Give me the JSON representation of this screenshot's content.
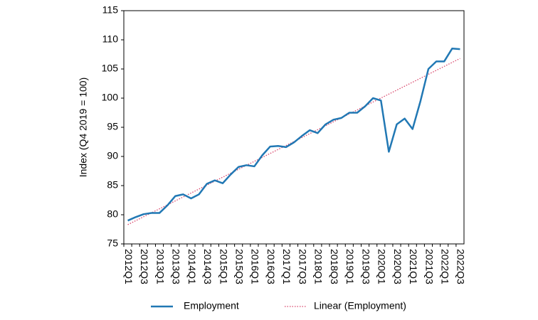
{
  "chart_data": {
    "type": "line",
    "y_label": "Index (Q4 2019 = 100)",
    "categories": [
      "2012Q1",
      null,
      "2012Q3",
      null,
      "2013Q1",
      null,
      "2013Q3",
      null,
      "2014Q1",
      null,
      "2014Q3",
      null,
      "2015Q1",
      null,
      "2015Q3",
      null,
      "2016Q1",
      null,
      "2016Q3",
      null,
      "2017Q1",
      null,
      "2017Q3",
      null,
      "2018Q1",
      null,
      "2018Q3",
      null,
      "2019Q1",
      null,
      "2019Q3",
      null,
      "2020Q1",
      null,
      "2020Q3",
      null,
      "2021Q1",
      null,
      "2021Q3",
      null,
      "2022Q1",
      null,
      "2022Q3"
    ],
    "series": [
      {
        "name": "Employment",
        "color": "#2178b4",
        "values": [
          79.0,
          79.6,
          80.1,
          80.3,
          80.3,
          81.6,
          83.2,
          83.5,
          82.8,
          83.5,
          85.3,
          85.9,
          85.4,
          86.9,
          88.2,
          88.5,
          88.3,
          90.2,
          91.7,
          91.8,
          91.6,
          92.4,
          93.5,
          94.5,
          94.0,
          95.5,
          96.3,
          96.6,
          97.5,
          97.5,
          98.6,
          100.0,
          99.6,
          90.8,
          95.5,
          96.5,
          94.7,
          99.5,
          105.0,
          106.3,
          106.3,
          108.5,
          108.4
        ]
      }
    ],
    "trendline": {
      "name": "Linear (Employment)",
      "color": "#d9456a",
      "start": 78.3,
      "end": 106.8
    },
    "ylim": [
      75,
      115
    ],
    "yticks": [
      75,
      80,
      85,
      90,
      95,
      100,
      105,
      110,
      115
    ],
    "legend": "bottom"
  }
}
